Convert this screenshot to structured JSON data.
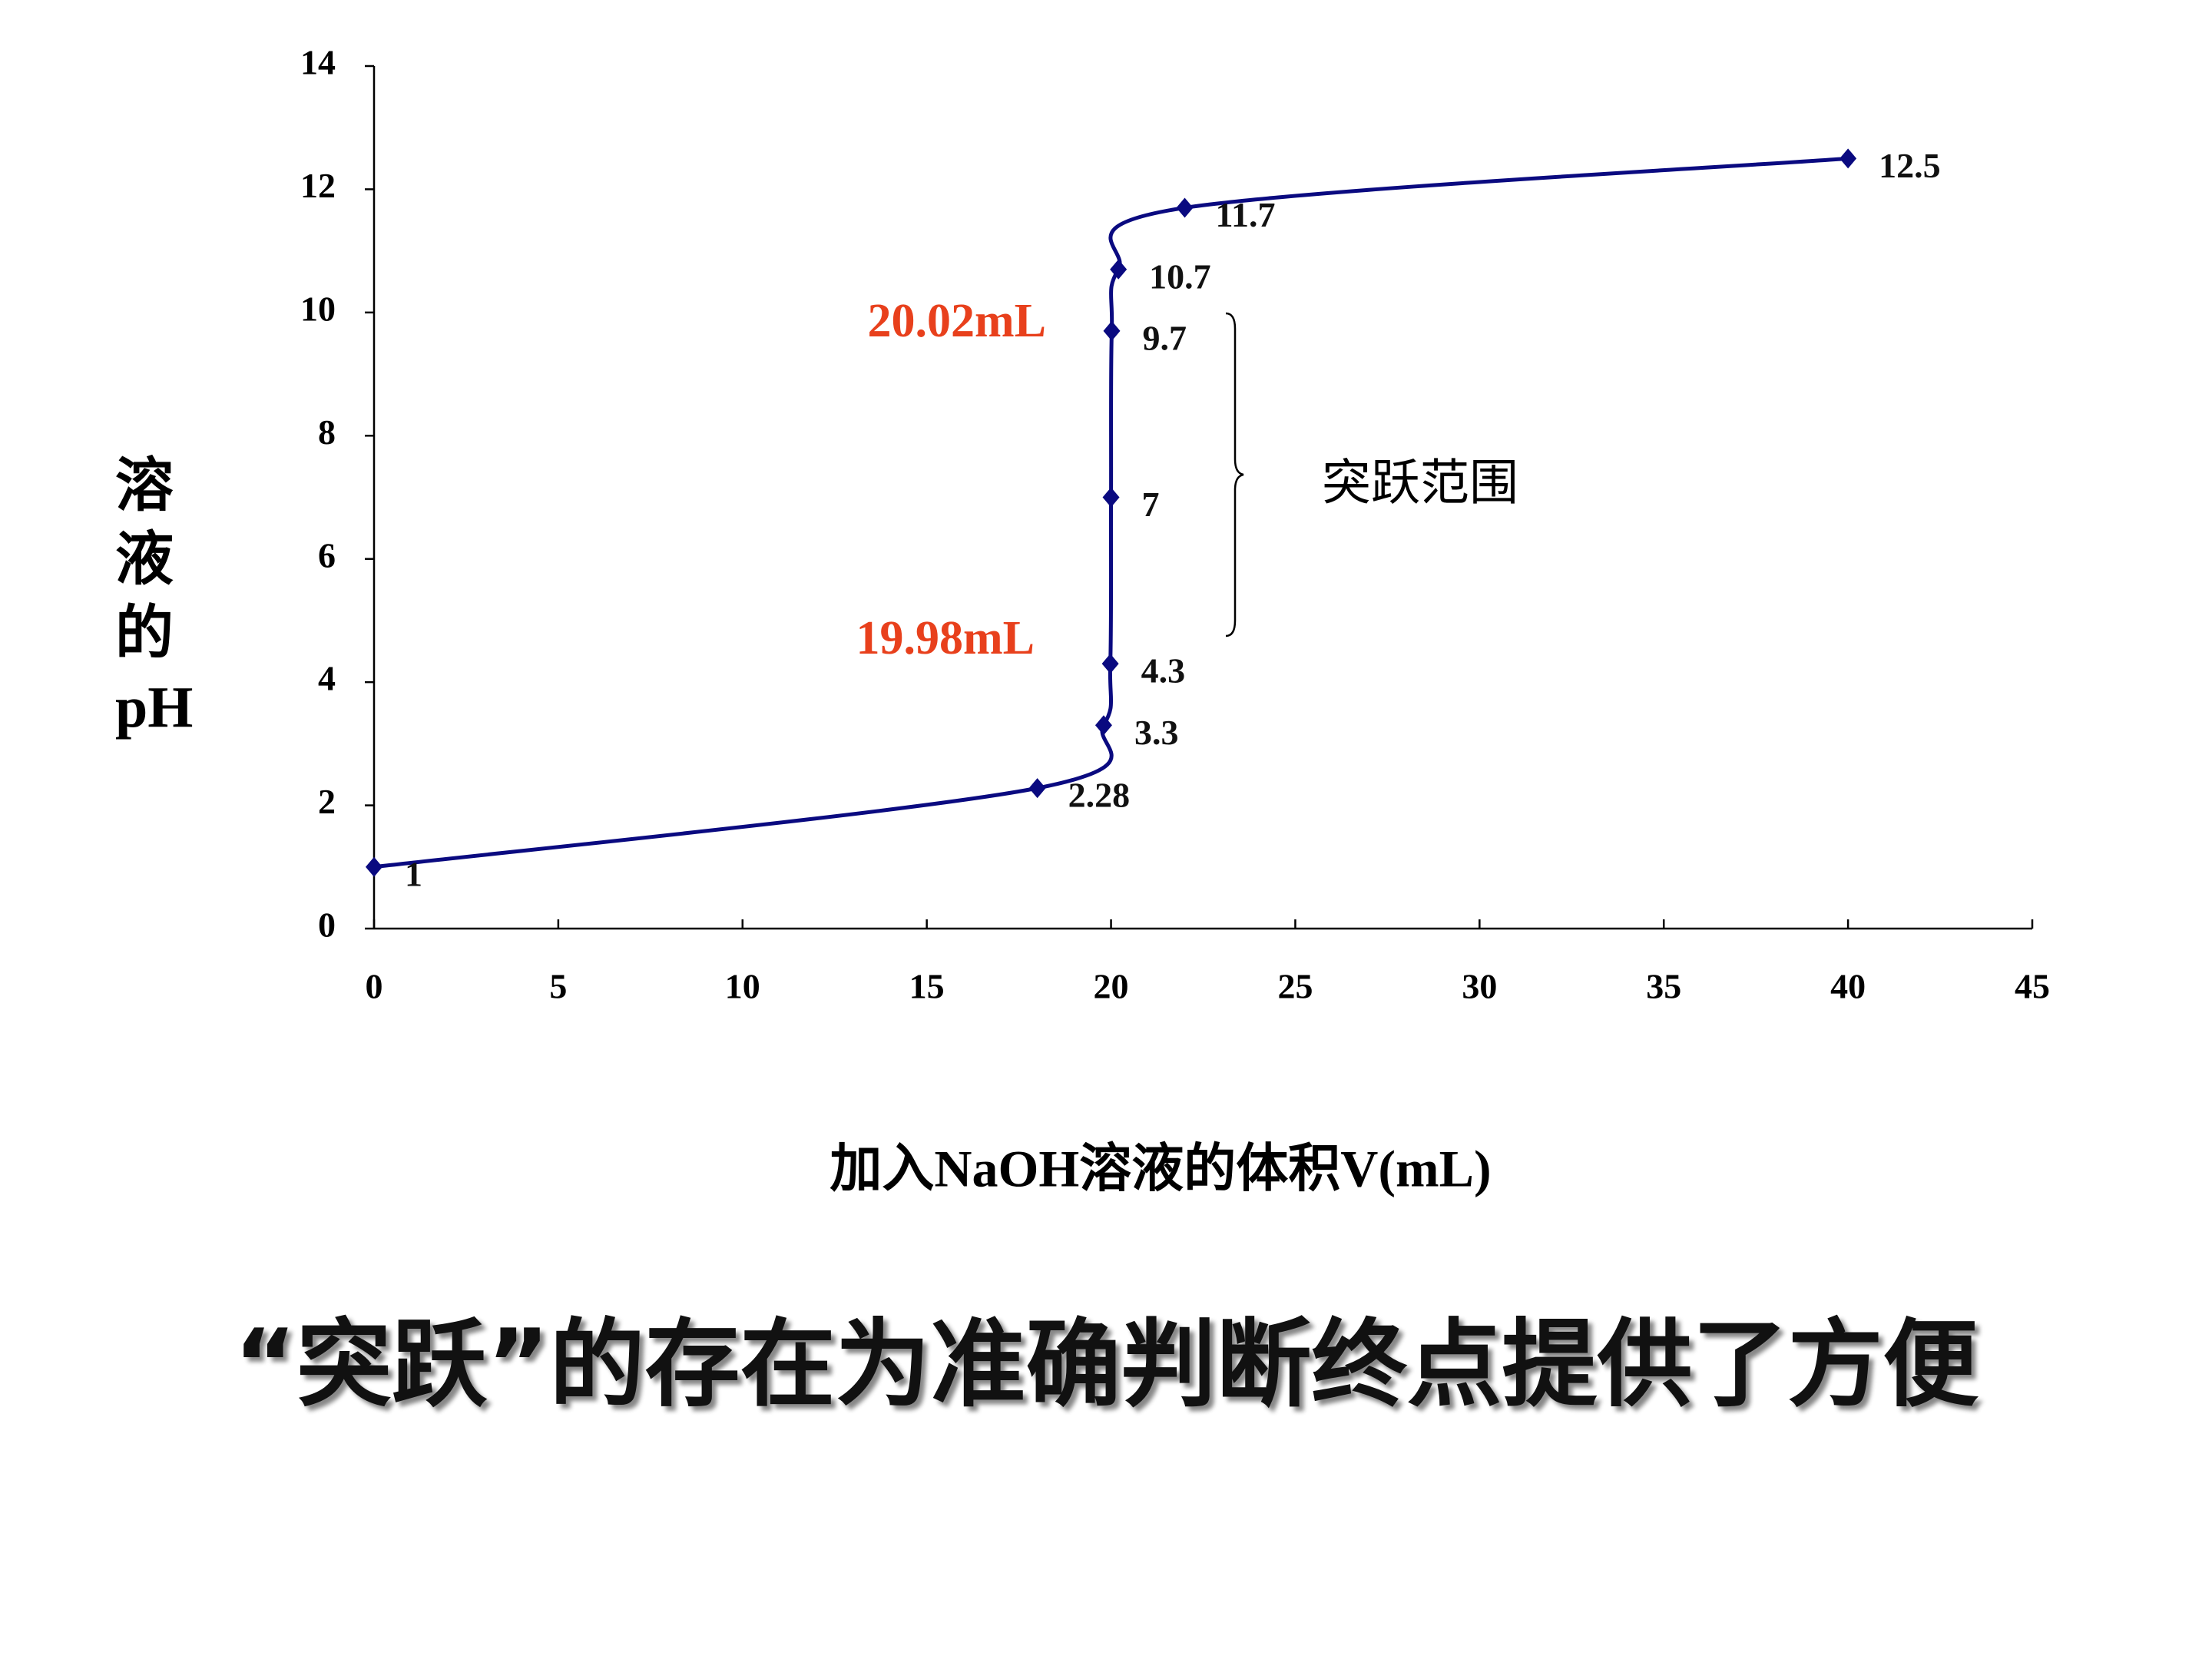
{
  "chart_data": {
    "type": "line",
    "x": [
      0,
      18,
      19.8,
      19.98,
      20,
      20.02,
      20.2,
      22,
      40
    ],
    "values": [
      1,
      2.28,
      3.3,
      4.3,
      7,
      9.7,
      10.7,
      11.7,
      12.5
    ],
    "color": "#0a0a80",
    "xlim": [
      0,
      45
    ],
    "xticks": [
      0,
      5,
      10,
      15,
      20,
      25,
      30,
      35,
      40,
      45
    ],
    "ylim": [
      0,
      14
    ],
    "yticks": [
      0,
      2,
      4,
      6,
      8,
      10,
      12,
      14
    ],
    "x_title": "加入NaOH溶液的体积V(mL)",
    "y_title": "溶液的pH",
    "annotations": [
      {
        "text": "20.02mL",
        "color": "#e8401c"
      },
      {
        "text": "19.98mL",
        "color": "#e8401c"
      },
      {
        "text": "突跃范围",
        "color": "#000000"
      }
    ]
  },
  "caption": "“突跃”的存在为准确判断终点提供了方便"
}
